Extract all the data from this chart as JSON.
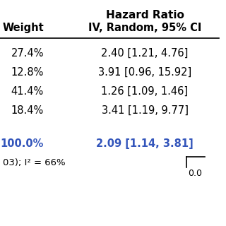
{
  "title": "Hazard Ratio",
  "header_col1": "Weight",
  "header_col2": "IV, Random, 95% CI",
  "rows": [
    {
      "weight": "27.4%",
      "ci": "2.40 [1.21, 4.76]"
    },
    {
      "weight": "12.8%",
      "ci": "3.91 [0.96, 15.92]"
    },
    {
      "weight": "41.4%",
      "ci": "1.26 [1.09, 1.46]"
    },
    {
      "weight": "18.4%",
      "ci": "3.41 [1.19, 9.77]"
    }
  ],
  "total_weight": "100.0%",
  "total_ci": "2.09 [1.14, 3.81]",
  "footer_text": "03); I² = 66%",
  "scale_label": "0.0",
  "bg_color": "#ffffff",
  "text_color_normal": "#000000",
  "text_color_blue": "#3355bb",
  "header_fontsize": 10.5,
  "row_fontsize": 10.5,
  "total_fontsize": 10.5,
  "title_fontsize": 11,
  "footer_fontsize": 9.5,
  "scale_fontsize": 9
}
